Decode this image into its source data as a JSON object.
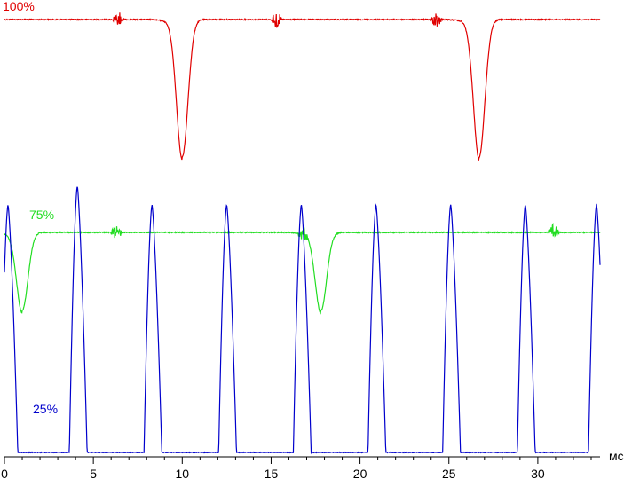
{
  "chart_data": {
    "type": "line",
    "title": "",
    "xlabel": "мс",
    "ylabel": "",
    "xlim": [
      0,
      33.5
    ],
    "x_ticks": [
      0,
      5,
      10,
      15,
      20,
      25,
      30
    ],
    "x_tick_labels": [
      "0",
      "5",
      "10",
      "15",
      "20",
      "25",
      "30"
    ],
    "grid": false,
    "legend": "none",
    "series": [
      {
        "name": "100%",
        "color": "#e00000",
        "baseline": 22,
        "dip_bottom": 177,
        "dips_at_ms": [
          10.0,
          26.7
        ],
        "noise_bursts_at_ms": [
          6.4,
          15.3,
          24.3
        ]
      },
      {
        "name": "75%",
        "color": "#22dd22",
        "baseline": 262,
        "dip_bottom": 350,
        "dips_at_ms": [
          1.0,
          17.8
        ],
        "noise_bursts_at_ms": [
          6.3,
          16.8,
          30.9
        ]
      },
      {
        "name": "25%",
        "color": "#0000cc",
        "baseline": 510,
        "peak_top": 210,
        "peaks_at_ms": [
          0.2,
          4.1,
          8.3,
          12.5,
          16.7,
          20.9,
          25.1,
          29.3,
          33.3
        ]
      }
    ]
  }
}
